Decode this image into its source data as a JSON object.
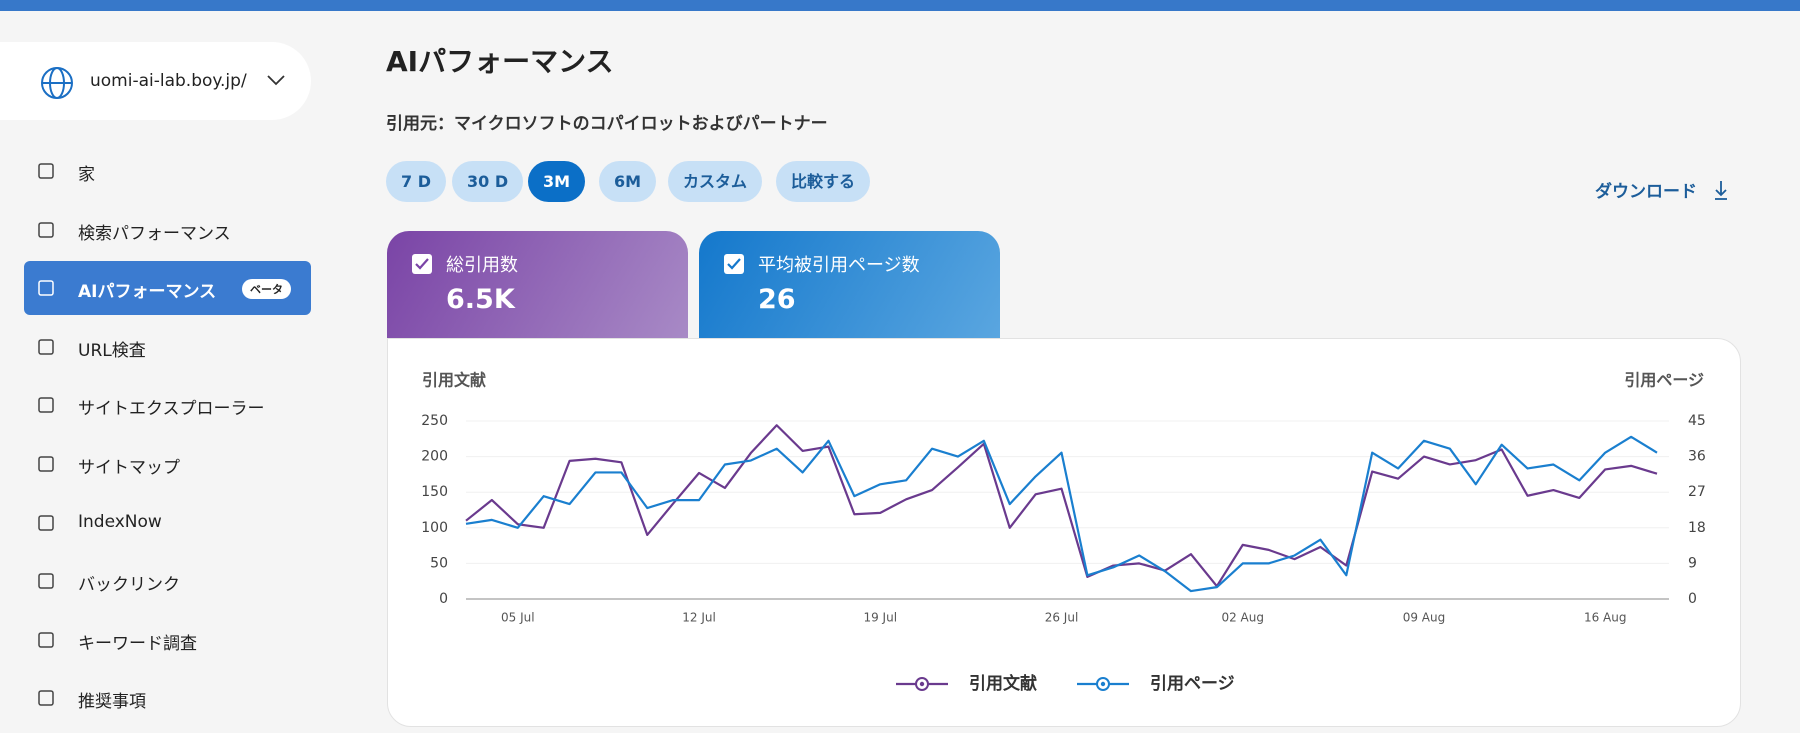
{
  "sidebar": {
    "domain": "uomi-ai-lab.boy.jp/",
    "nav": [
      {
        "label": "家"
      },
      {
        "label": "検索パフォーマンス"
      },
      {
        "label": "AIパフォーマンス",
        "badge": "ベータ",
        "active": true
      },
      {
        "label": "URL検査"
      },
      {
        "label": "サイトエクスプローラー"
      },
      {
        "label": "サイトマップ"
      },
      {
        "label": "IndexNow"
      },
      {
        "label": "バックリンク"
      },
      {
        "label": "キーワード調査"
      },
      {
        "label": "推奨事項"
      }
    ]
  },
  "header": {
    "title": "AIパフォーマンス",
    "subtitle": "引用元：マイクロソフトのコパイロットおよびパートナー"
  },
  "tabs": [
    "7 D",
    "30 D",
    "3M",
    "6M",
    "カスタム",
    "比較する"
  ],
  "active_tab_index": 2,
  "download": "ダウンロード",
  "cards": [
    {
      "label": "総引用数",
      "value": "6.5K"
    },
    {
      "label": "平均被引用ページ数",
      "value": "26"
    }
  ],
  "chart_data": {
    "type": "line",
    "y_label": "引用文献",
    "y2_label": "引用ページ",
    "categories": [
      null,
      null,
      "05 Jul",
      null,
      null,
      null,
      null,
      null,
      null,
      "12 Jul",
      null,
      null,
      null,
      null,
      null,
      null,
      "19 Jul",
      null,
      null,
      null,
      null,
      null,
      null,
      "26 Jul",
      null,
      null,
      null,
      null,
      null,
      null,
      "02 Aug",
      null,
      null,
      null,
      null,
      null,
      null,
      "09 Aug",
      null,
      null,
      null,
      null,
      null,
      null,
      "16 Aug",
      null,
      null
    ],
    "series": [
      {
        "name": "引用文献",
        "color": "#6a3a8e",
        "axis": "y",
        "values": [
          110,
          139,
          105,
          100,
          194,
          197,
          192,
          90,
          134,
          177,
          156,
          205,
          244,
          208,
          214,
          119,
          121,
          140,
          153,
          185,
          218,
          100,
          147,
          155,
          31,
          47,
          50,
          40,
          63,
          18,
          76,
          69,
          56,
          73,
          47,
          179,
          169,
          200,
          189,
          195,
          210,
          145,
          153,
          142,
          182,
          187,
          176
        ]
      },
      {
        "name": "引用ページ",
        "color": "#1a7fcf",
        "axis": "y2",
        "values": [
          19,
          20,
          18,
          26,
          24,
          32,
          32,
          23,
          25,
          25,
          34,
          35,
          38,
          32,
          40,
          26,
          29,
          30,
          38,
          36,
          40,
          24,
          31,
          37,
          6,
          8,
          11,
          7,
          2,
          3,
          9,
          9,
          11,
          15,
          6,
          37,
          33,
          40,
          38,
          29,
          39,
          33,
          34,
          30,
          37,
          41,
          37
        ]
      }
    ],
    "ylim": [
      0,
      250
    ],
    "yticks": [
      0,
      50,
      100,
      150,
      200,
      250
    ],
    "y2lim": [
      0,
      45
    ],
    "y2ticks": [
      0,
      9,
      18,
      27,
      36,
      45
    ],
    "grid": true
  }
}
